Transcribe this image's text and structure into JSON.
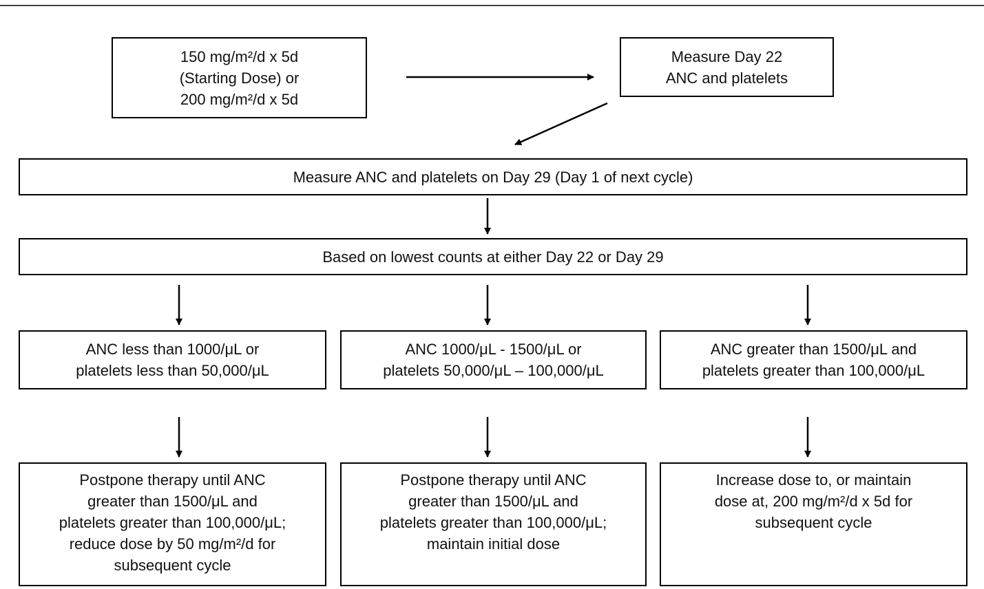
{
  "nodes": [
    {
      "lines": [
        "150 mg/m²/d x 5d",
        "(Starting Dose) or",
        "200 mg/m²/d x 5d"
      ]
    },
    {
      "lines": [
        "Measure Day 22",
        "ANC and platelets"
      ]
    },
    {
      "lines": [
        "Measure ANC and platelets on Day 29 (Day 1 of next cycle)"
      ]
    },
    {
      "lines": [
        "Based on lowest counts at either Day 22 or Day 29"
      ]
    },
    {
      "lines": [
        "ANC less than 1000/μL or",
        "platelets less than 50,000/μL"
      ]
    },
    {
      "lines": [
        "ANC 1000/μL - 1500/μL or",
        "platelets 50,000/μL – 100,000/μL"
      ]
    },
    {
      "lines": [
        "ANC greater than 1500/μL and",
        "platelets greater than 100,000/μL"
      ]
    },
    {
      "lines": [
        "Postpone therapy until ANC",
        "greater than 1500/μL and",
        "platelets greater than 100,000/μL;",
        "reduce dose by 50 mg/m²/d for",
        "subsequent cycle"
      ]
    },
    {
      "lines": [
        "Postpone therapy until ANC",
        "greater than 1500/μL and",
        "platelets greater than 100,000/μL;",
        "maintain initial dose"
      ]
    },
    {
      "lines": [
        "Increase dose to, or maintain",
        "dose at, 200 mg/m²/d x 5d for",
        "subsequent cycle"
      ]
    }
  ]
}
